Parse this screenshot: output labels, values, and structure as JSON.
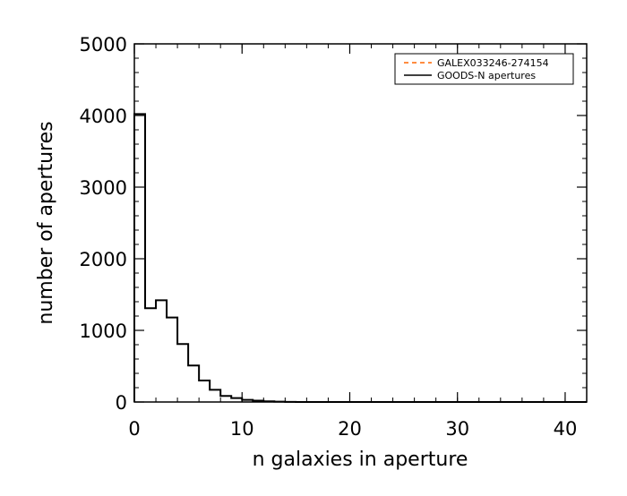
{
  "chart_data": {
    "type": "histogram",
    "xlabel": "n galaxies in aperture",
    "ylabel": "number of apertures",
    "xlim": [
      0,
      42
    ],
    "ylim": [
      0,
      5000
    ],
    "xticks": [
      0,
      10,
      20,
      30,
      40
    ],
    "yticks": [
      0,
      1000,
      2000,
      3000,
      4000,
      5000
    ],
    "x_minor_interval": 2,
    "y_minor_interval": 200,
    "grid": false,
    "legend_position": "top-right",
    "series": [
      {
        "name": "GALEX033246-274154",
        "style": "dashed",
        "color": "#ff6600",
        "x": [
          0,
          0
        ],
        "y": [
          0,
          1000
        ]
      },
      {
        "name": "GOODS-N apertures",
        "style": "steps",
        "color": "#000000",
        "bin_width": 1,
        "bin_starts": [
          0,
          1,
          2,
          3,
          4,
          5,
          6,
          7,
          8,
          9,
          10,
          11,
          12,
          13,
          14,
          15,
          16,
          17,
          18,
          19,
          20,
          21,
          22,
          23,
          24,
          25,
          26,
          27,
          28,
          29,
          30,
          31,
          32,
          33,
          34,
          35,
          36,
          37,
          38,
          39,
          40,
          41
        ],
        "counts": [
          4020,
          1310,
          1420,
          1180,
          810,
          510,
          300,
          170,
          85,
          55,
          30,
          18,
          10,
          5,
          2,
          0,
          0,
          0,
          0,
          0,
          0,
          0,
          0,
          0,
          0,
          0,
          0,
          0,
          0,
          0,
          0,
          0,
          0,
          0,
          0,
          0,
          0,
          0,
          0,
          0,
          0,
          0
        ]
      }
    ]
  }
}
